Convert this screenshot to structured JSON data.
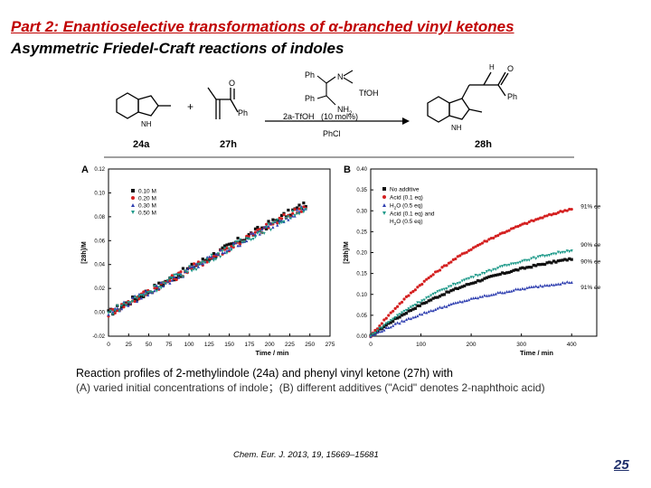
{
  "slide": {
    "title": "Part 2: Enantioselective transformations of α-branched vinyl ketones",
    "subtitle": "Asymmetric Friedel-Craft reactions of indoles",
    "page_number": "25",
    "citation": "Chem. Eur. J. 2013, 19, 15669–15681"
  },
  "scheme": {
    "reactant_1": "24a",
    "reactant_2": "27h",
    "product": "28h",
    "plus": "+",
    "catalyst": "2a-TfOH",
    "loading": "(10 mol%)",
    "solvent": "PhCl",
    "ph_label": "Ph",
    "atoms": {
      "nh": "NH",
      "n_label": "N",
      "h_label": "H",
      "o_label": "O",
      "tfoh": "TfOH",
      "nh2": "NH",
      "two": "2",
      "ph_catalyst": "Ph"
    }
  },
  "caption": {
    "line1": "Reaction profiles of 2-methylindole (24a) and phenyl vinyl ketone (27h) with",
    "line2": "(A) varied initial concentrations of indole；(B) different additives (\"Acid\" denotes 2-naphthoic acid)"
  },
  "chart_data": [
    {
      "type": "scatter",
      "panel": "A",
      "xlabel": "Time / min",
      "ylabel": "[28h]/M",
      "xlim": [
        0,
        275
      ],
      "ylim": [
        -0.02,
        0.12
      ],
      "xticks": [
        0,
        25,
        50,
        75,
        100,
        125,
        150,
        175,
        200,
        225,
        250,
        275
      ],
      "yticks": [
        -0.02,
        0.0,
        0.02,
        0.04,
        0.06,
        0.08,
        0.1,
        0.12
      ],
      "legend_position": "top-left",
      "series": [
        {
          "name": "0.10 M",
          "color": "#111111",
          "marker": "square",
          "slope": 0.000375,
          "x_end": 245
        },
        {
          "name": "0.20 M",
          "color": "#d42020",
          "marker": "circle",
          "slope": 0.000368,
          "x_end": 245
        },
        {
          "name": "0.30 M",
          "color": "#2f3fb0",
          "marker": "triangle-up",
          "slope": 0.000365,
          "x_end": 245
        },
        {
          "name": "0.50 M",
          "color": "#1e9a8a",
          "marker": "triangle-down",
          "slope": 0.000362,
          "x_end": 245
        }
      ]
    },
    {
      "type": "line",
      "panel": "B",
      "xlabel": "Time / min",
      "ylabel": "[28h]/M",
      "xlim": [
        0,
        450
      ],
      "ylim": [
        0.0,
        0.4
      ],
      "xticks": [
        0,
        100,
        200,
        300,
        400
      ],
      "yticks": [
        0.0,
        0.05,
        0.1,
        0.15,
        0.2,
        0.25,
        0.3,
        0.35,
        0.4
      ],
      "legend_position": "top-left",
      "series": [
        {
          "name": "No additive",
          "label_main": "No additive",
          "label_sub": "",
          "color": "#111111",
          "marker": "square",
          "end_value": 0.185,
          "annotation": "90% ee"
        },
        {
          "name": "Acid (0.1 eq)",
          "label_main": "Acid (0.1 eq)",
          "label_sub": "",
          "color": "#d42020",
          "marker": "circle",
          "end_value": 0.305,
          "annotation": "91% ee"
        },
        {
          "name": "H2O (0.5 eq)",
          "label_main": "H",
          "label_sub": "O (0.5 eq)",
          "color": "#2f3fb0",
          "marker": "triangle-up",
          "end_value": 0.13,
          "annotation": "91% ee"
        },
        {
          "name": "Acid (0.1 eq) and H2O (0.5 eq)",
          "label_main": "Acid (0.1 eq) and",
          "label_sub": "O (0.5 eq)",
          "color": "#1e9a8a",
          "marker": "triangle-down",
          "end_value": 0.205,
          "annotation": "90% ee"
        }
      ]
    }
  ]
}
